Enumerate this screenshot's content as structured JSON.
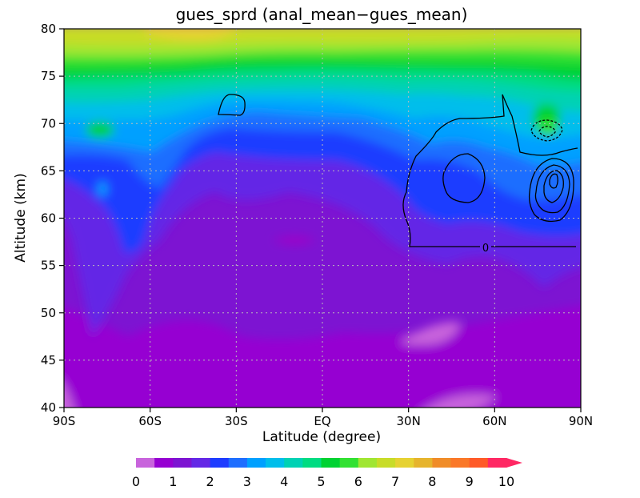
{
  "chart_data": {
    "type": "heatmap",
    "title": "gues_sprd (anal_mean−gues_mean)",
    "xlabel": "Latitude (degree)",
    "ylabel": "Altitude (km)",
    "xlim": [
      -90,
      90
    ],
    "ylim": [
      40,
      80
    ],
    "x_ticks": [
      -90,
      -60,
      -30,
      0,
      30,
      60,
      90
    ],
    "x_tick_labels": [
      "90S",
      "60S",
      "30S",
      "EQ",
      "30N",
      "60N",
      "90N"
    ],
    "y_ticks": [
      40,
      45,
      50,
      55,
      60,
      65,
      70,
      75,
      80
    ],
    "y_tick_labels": [
      "40",
      "45",
      "50",
      "55",
      "60",
      "65",
      "70",
      "75",
      "80"
    ],
    "grid": true,
    "colorbar": {
      "levels": [
        0,
        0.5,
        1,
        1.5,
        2,
        2.5,
        3,
        3.5,
        4,
        4.5,
        5,
        5.5,
        6,
        6.5,
        7,
        7.5,
        8,
        8.5,
        9,
        9.5,
        10
      ],
      "tick_labels": [
        "0",
        "1",
        "2",
        "3",
        "4",
        "5",
        "6",
        "7",
        "8",
        "9",
        "10"
      ],
      "colors": [
        "#c864dc",
        "#9600d2",
        "#7d14d2",
        "#6428e6",
        "#1e3cff",
        "#1e6eff",
        "#00a0ff",
        "#00beeb",
        "#00d2b4",
        "#00dc82",
        "#00d232",
        "#32e132",
        "#a0e632",
        "#c8dc28",
        "#e6d232",
        "#e6b42d",
        "#f08c28",
        "#fa7828",
        "#ff5a28",
        "#ff2864"
      ],
      "extend": "max"
    },
    "contour_label": "0"
  }
}
